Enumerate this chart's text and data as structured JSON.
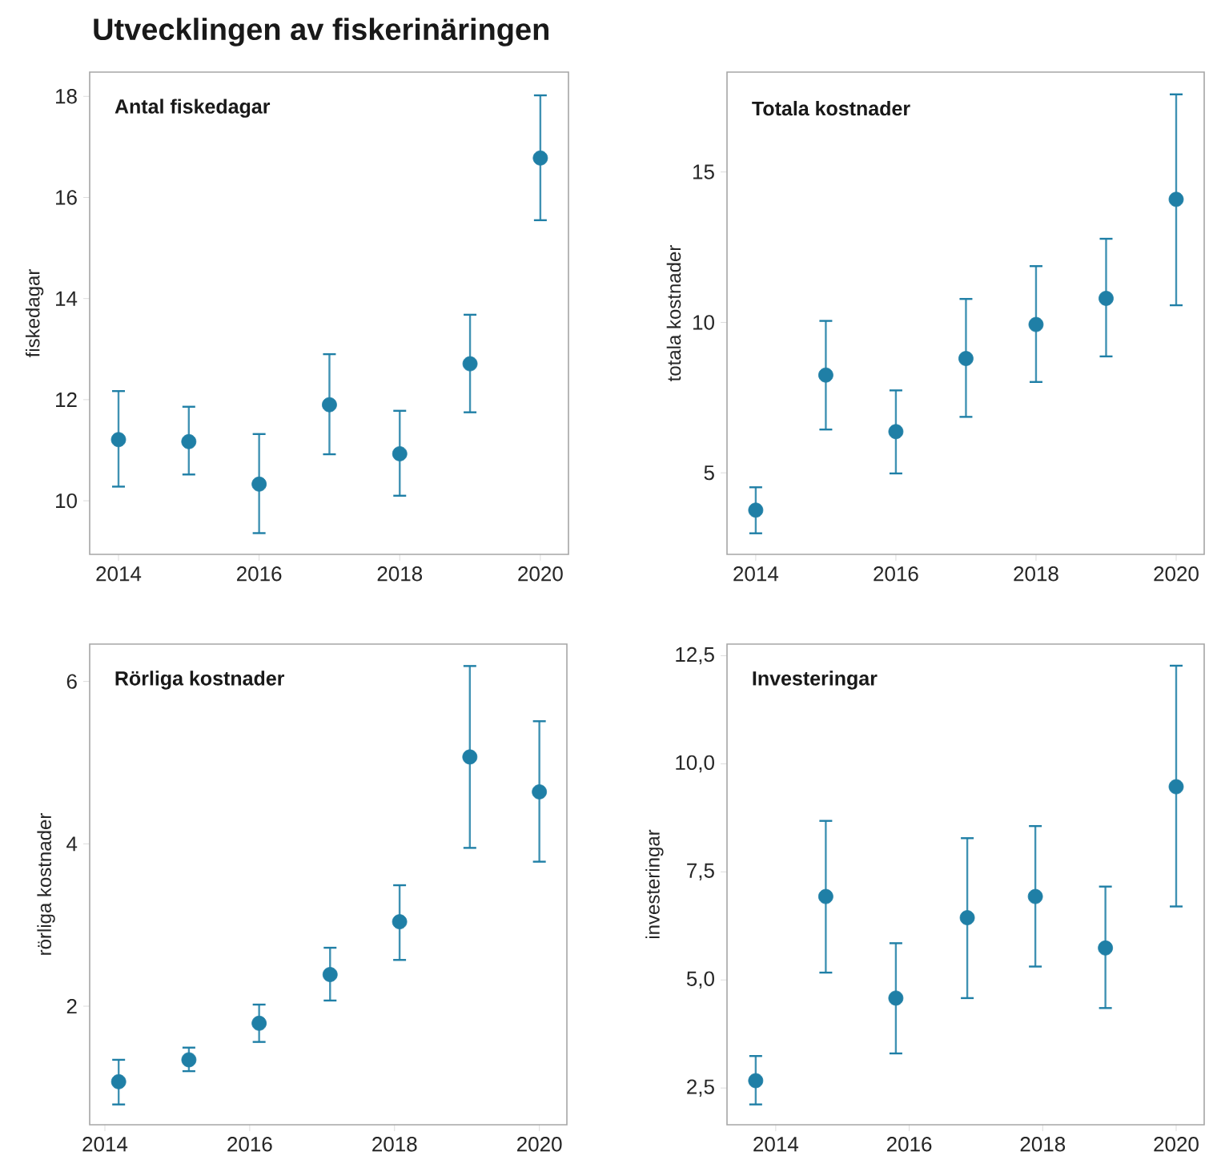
{
  "chart_data": [
    {
      "type": "scatter",
      "title": "Antal fiskedagar",
      "ylabel": "fiskedagar",
      "annotations": [
        "Utvecklingen av fiskerinäringen"
      ],
      "x": [
        2014,
        2015,
        2016,
        2017,
        2018,
        2019,
        2020
      ],
      "values": [
        11.21,
        11.17,
        10.33,
        11.9,
        10.93,
        12.71,
        16.78
      ],
      "errors": [
        [
          10.28,
          12.17
        ],
        [
          10.52,
          11.86
        ],
        [
          9.36,
          11.32
        ],
        [
          10.92,
          12.9
        ],
        [
          10.1,
          11.78
        ],
        [
          11.75,
          13.68
        ],
        [
          15.55,
          18.02
        ]
      ],
      "color": "#1f7fa6",
      "xlim": [
        2013.59,
        2020.4
      ],
      "ylim": [
        8.94,
        18.48
      ],
      "xticks": [
        2014,
        2016,
        2018,
        2020
      ],
      "yticks": [
        10,
        12,
        14,
        16,
        18
      ]
    },
    {
      "type": "scatter",
      "title": "Totala kostnader",
      "ylabel": "totala kostnader",
      "x": [
        2014,
        2015,
        2016,
        2017,
        2018,
        2019,
        2020
      ],
      "values": [
        3.76,
        8.25,
        6.37,
        8.8,
        9.93,
        10.8,
        14.09
      ],
      "errors": [
        [
          2.99,
          4.52
        ],
        [
          6.44,
          10.05
        ],
        [
          4.98,
          7.74
        ],
        [
          6.86,
          10.78
        ],
        [
          8.02,
          11.87
        ],
        [
          8.87,
          12.78
        ],
        [
          10.57,
          17.58
        ]
      ],
      "color": "#1f7fa6",
      "xlim": [
        2013.59,
        2020.4
      ],
      "ylim": [
        2.29,
        18.32
      ],
      "xticks": [
        2014,
        2016,
        2018,
        2020
      ],
      "yticks": [
        5,
        10,
        15
      ]
    },
    {
      "type": "scatter",
      "title": "Rörliga kostnader",
      "ylabel": "rörliga kostnader",
      "x": [
        2014.19,
        2015.16,
        2016.13,
        2017.11,
        2018.07,
        2019.04,
        2020
      ],
      "values": [
        1.07,
        1.34,
        1.79,
        2.39,
        3.04,
        5.07,
        4.64
      ],
      "errors": [
        [
          0.79,
          1.34
        ],
        [
          1.2,
          1.49
        ],
        [
          1.56,
          2.02
        ],
        [
          2.07,
          2.72
        ],
        [
          2.57,
          3.49
        ],
        [
          3.95,
          6.19
        ],
        [
          3.78,
          5.51
        ]
      ],
      "color": "#1f7fa6",
      "xlim": [
        2013.79,
        2020.38
      ],
      "ylim": [
        0.54,
        6.46
      ],
      "xticks": [
        2014,
        2016,
        2018,
        2020
      ],
      "yticks": [
        2,
        4,
        6
      ]
    },
    {
      "type": "scatter",
      "title": "Investeringar",
      "ylabel": "investeringar",
      "x": [
        2013.7,
        2014.75,
        2015.8,
        2016.87,
        2017.89,
        2018.94,
        2020
      ],
      "values": [
        2.67,
        6.93,
        4.58,
        6.44,
        6.93,
        5.74,
        9.47
      ],
      "errors": [
        [
          2.12,
          3.24
        ],
        [
          5.17,
          8.68
        ],
        [
          3.3,
          5.85
        ],
        [
          4.58,
          8.28
        ],
        [
          5.31,
          8.56
        ],
        [
          4.35,
          7.16
        ],
        [
          6.7,
          12.27
        ]
      ],
      "color": "#1f7fa6",
      "xlim": [
        2013.27,
        2020.42
      ],
      "ylim": [
        1.65,
        12.77
      ],
      "xticks": [
        2014,
        2016,
        2018,
        2020
      ],
      "yticks": [
        {
          "value": 2.5,
          "label": "2,5"
        },
        {
          "value": 5,
          "label": "5,0"
        },
        {
          "value": 7.5,
          "label": "7,5"
        },
        {
          "value": 10,
          "label": "10,0"
        },
        {
          "value": 12.5,
          "label": "12,5"
        }
      ]
    }
  ]
}
